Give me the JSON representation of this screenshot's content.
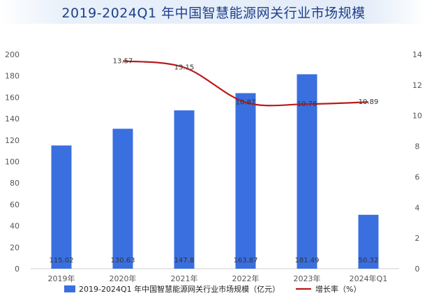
{
  "chart_data": {
    "type": "bar",
    "title": "2019-2024Q1 年中国智慧能源网关行业市场规模",
    "categories": [
      "2019年",
      "2020年",
      "2021年",
      "2022年",
      "2023年",
      "2024年Q1"
    ],
    "series": [
      {
        "name": "2019-2024Q1 年中国智慧能源网关行业市场规模（亿元）",
        "type": "bar",
        "axis": "left",
        "values": [
          115.02,
          130.63,
          147.8,
          163.87,
          181.49,
          50.32
        ],
        "labels": [
          "115.02",
          "130.63",
          "147.8",
          "163.87",
          "181.49",
          "50.32"
        ]
      },
      {
        "name": "增长率（%）",
        "type": "line",
        "axis": "right",
        "values": [
          null,
          13.57,
          13.15,
          10.87,
          10.76,
          10.89
        ],
        "labels": [
          "",
          "13.57",
          "13.15",
          "10.87",
          "10.76",
          "10.89"
        ]
      }
    ],
    "ylim": [
      0,
      200
    ],
    "y_ticks": [
      "0",
      "20",
      "40",
      "60",
      "80",
      "100",
      "120",
      "140",
      "160",
      "180",
      "200"
    ],
    "y2lim": [
      0,
      14
    ],
    "y2_ticks": [
      "0",
      "2",
      "4",
      "6",
      "8",
      "10",
      "12",
      "14"
    ],
    "grid": false,
    "legend_position": "bottom",
    "colors": {
      "bar": "#3a6fe0",
      "line": "#b91a1a",
      "title": "#1f3f8a"
    }
  }
}
